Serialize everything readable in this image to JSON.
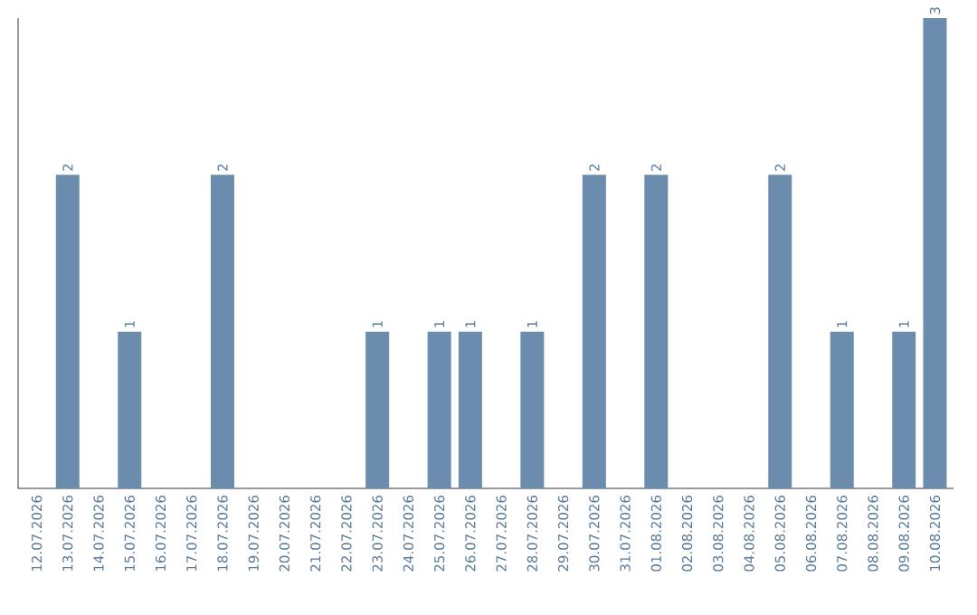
{
  "chart_data": {
    "type": "bar",
    "categories": [
      "12.07.2026",
      "13.07.2026",
      "14.07.2026",
      "15.07.2026",
      "16.07.2026",
      "17.07.2026",
      "18.07.2026",
      "19.07.2026",
      "20.07.2026",
      "21.07.2026",
      "22.07.2026",
      "23.07.2026",
      "24.07.2026",
      "25.07.2026",
      "26.07.2026",
      "27.07.2026",
      "28.07.2026",
      "29.07.2026",
      "30.07.2026",
      "31.07.2026",
      "01.08.2026",
      "02.08.2026",
      "03.08.2026",
      "04.08.2026",
      "05.08.2026",
      "06.08.2026",
      "07.08.2026",
      "08.08.2026",
      "09.08.2026",
      "10.08.2026"
    ],
    "values": [
      0,
      2,
      0,
      1,
      0,
      0,
      2,
      0,
      0,
      0,
      0,
      1,
      0,
      1,
      1,
      0,
      1,
      0,
      2,
      0,
      2,
      0,
      0,
      0,
      2,
      0,
      1,
      0,
      1,
      3
    ],
    "value_labels": [
      null,
      "2",
      null,
      "1",
      null,
      null,
      "2",
      null,
      null,
      null,
      null,
      "1",
      null,
      "1",
      "1",
      null,
      "1",
      null,
      "2",
      null,
      "2",
      null,
      null,
      null,
      "2",
      null,
      "1",
      null,
      "1",
      "3"
    ],
    "color": "#6b8cac"
  }
}
